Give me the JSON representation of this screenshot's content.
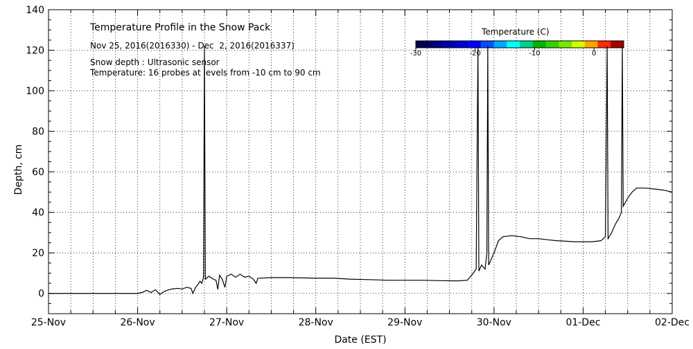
{
  "chart_data": {
    "type": "line",
    "title": "Temperature Profile in the Snow Pack",
    "subtitle": "Nov 25, 2016(2016330) - Dec  2, 2016(2016337)",
    "annotations": [
      "Snow depth : Ultrasonic sensor",
      "Temperature: 16 probes at levels from -10 cm to 90 cm"
    ],
    "xlabel": "Date (EST)",
    "ylabel": "Depth, cm",
    "x_tick_labels": [
      "25-Nov",
      "26-Nov",
      "27-Nov",
      "28-Nov",
      "29-Nov",
      "30-Nov",
      "01-Dec",
      "02-Dec"
    ],
    "x_range_days": [
      0,
      7
    ],
    "ylim": [
      -10,
      140
    ],
    "y_ticks": [
      0,
      20,
      40,
      60,
      80,
      100,
      120,
      140
    ],
    "grid": true,
    "colorbar": {
      "title": "Temperature (C)",
      "range": [
        -30,
        5
      ],
      "tick_values": [
        -30,
        -20,
        -10,
        0
      ],
      "tick_labels": [
        "-30",
        "-20",
        "-10",
        "0"
      ],
      "colors": [
        "#000050",
        "#00007a",
        "#0000a8",
        "#0000d2",
        "#0000ff",
        "#0050ff",
        "#00a8ff",
        "#00ffff",
        "#00d28c",
        "#00b400",
        "#32d200",
        "#7ae600",
        "#d2ff00",
        "#ffa500",
        "#ff2800",
        "#a00000"
      ]
    },
    "series": [
      {
        "values": [
          [
            0.0,
            0
          ],
          [
            0.5,
            0
          ],
          [
            1.0,
            0
          ],
          [
            1.05,
            0.5
          ],
          [
            1.1,
            1.5
          ],
          [
            1.15,
            0.5
          ],
          [
            1.2,
            1.8
          ],
          [
            1.25,
            -0.5
          ],
          [
            1.3,
            1
          ],
          [
            1.35,
            1.8
          ],
          [
            1.4,
            2.3
          ],
          [
            1.45,
            2.5
          ],
          [
            1.5,
            2.2
          ],
          [
            1.55,
            3
          ],
          [
            1.6,
            2.5
          ],
          [
            1.62,
            0
          ],
          [
            1.65,
            3
          ],
          [
            1.68,
            4.5
          ],
          [
            1.7,
            6
          ],
          [
            1.72,
            5
          ],
          [
            1.74,
            8
          ],
          [
            1.75,
            122
          ],
          [
            1.76,
            7
          ],
          [
            1.8,
            8.5
          ],
          [
            1.85,
            7
          ],
          [
            1.88,
            6.5
          ],
          [
            1.9,
            2
          ],
          [
            1.92,
            9
          ],
          [
            1.95,
            7
          ],
          [
            1.98,
            3
          ],
          [
            2.0,
            8.5
          ],
          [
            2.05,
            9.5
          ],
          [
            2.1,
            8
          ],
          [
            2.15,
            9.5
          ],
          [
            2.2,
            8
          ],
          [
            2.25,
            8.5
          ],
          [
            2.3,
            7
          ],
          [
            2.33,
            5
          ],
          [
            2.35,
            7.5
          ],
          [
            2.5,
            7.8
          ],
          [
            2.7,
            7.8
          ],
          [
            3.0,
            7.5
          ],
          [
            3.2,
            7.5
          ],
          [
            3.4,
            7
          ],
          [
            3.6,
            6.8
          ],
          [
            3.8,
            6.5
          ],
          [
            4.0,
            6.5
          ],
          [
            4.2,
            6.5
          ],
          [
            4.4,
            6.3
          ],
          [
            4.6,
            6.2
          ],
          [
            4.7,
            6.5
          ],
          [
            4.75,
            9
          ],
          [
            4.8,
            12
          ],
          [
            4.82,
            122
          ],
          [
            4.83,
            11
          ],
          [
            4.86,
            14
          ],
          [
            4.9,
            12
          ],
          [
            4.92,
            20
          ],
          [
            4.93,
            122
          ],
          [
            4.94,
            14
          ],
          [
            4.97,
            17
          ],
          [
            5.0,
            20
          ],
          [
            5.05,
            26
          ],
          [
            5.1,
            28
          ],
          [
            5.2,
            28.5
          ],
          [
            5.3,
            28
          ],
          [
            5.4,
            27
          ],
          [
            5.5,
            27
          ],
          [
            5.6,
            26.5
          ],
          [
            5.7,
            26
          ],
          [
            5.8,
            25.8
          ],
          [
            5.9,
            25.5
          ],
          [
            6.0,
            25.5
          ],
          [
            6.1,
            25.5
          ],
          [
            6.2,
            26
          ],
          [
            6.25,
            28
          ],
          [
            6.27,
            122
          ],
          [
            6.28,
            27
          ],
          [
            6.32,
            30
          ],
          [
            6.36,
            34
          ],
          [
            6.4,
            37
          ],
          [
            6.43,
            40
          ],
          [
            6.44,
            122
          ],
          [
            6.45,
            43
          ],
          [
            6.5,
            47
          ],
          [
            6.55,
            50
          ],
          [
            6.6,
            52
          ],
          [
            6.7,
            52
          ],
          [
            6.8,
            51.5
          ],
          [
            6.9,
            51
          ],
          [
            7.0,
            50
          ]
        ]
      }
    ]
  }
}
